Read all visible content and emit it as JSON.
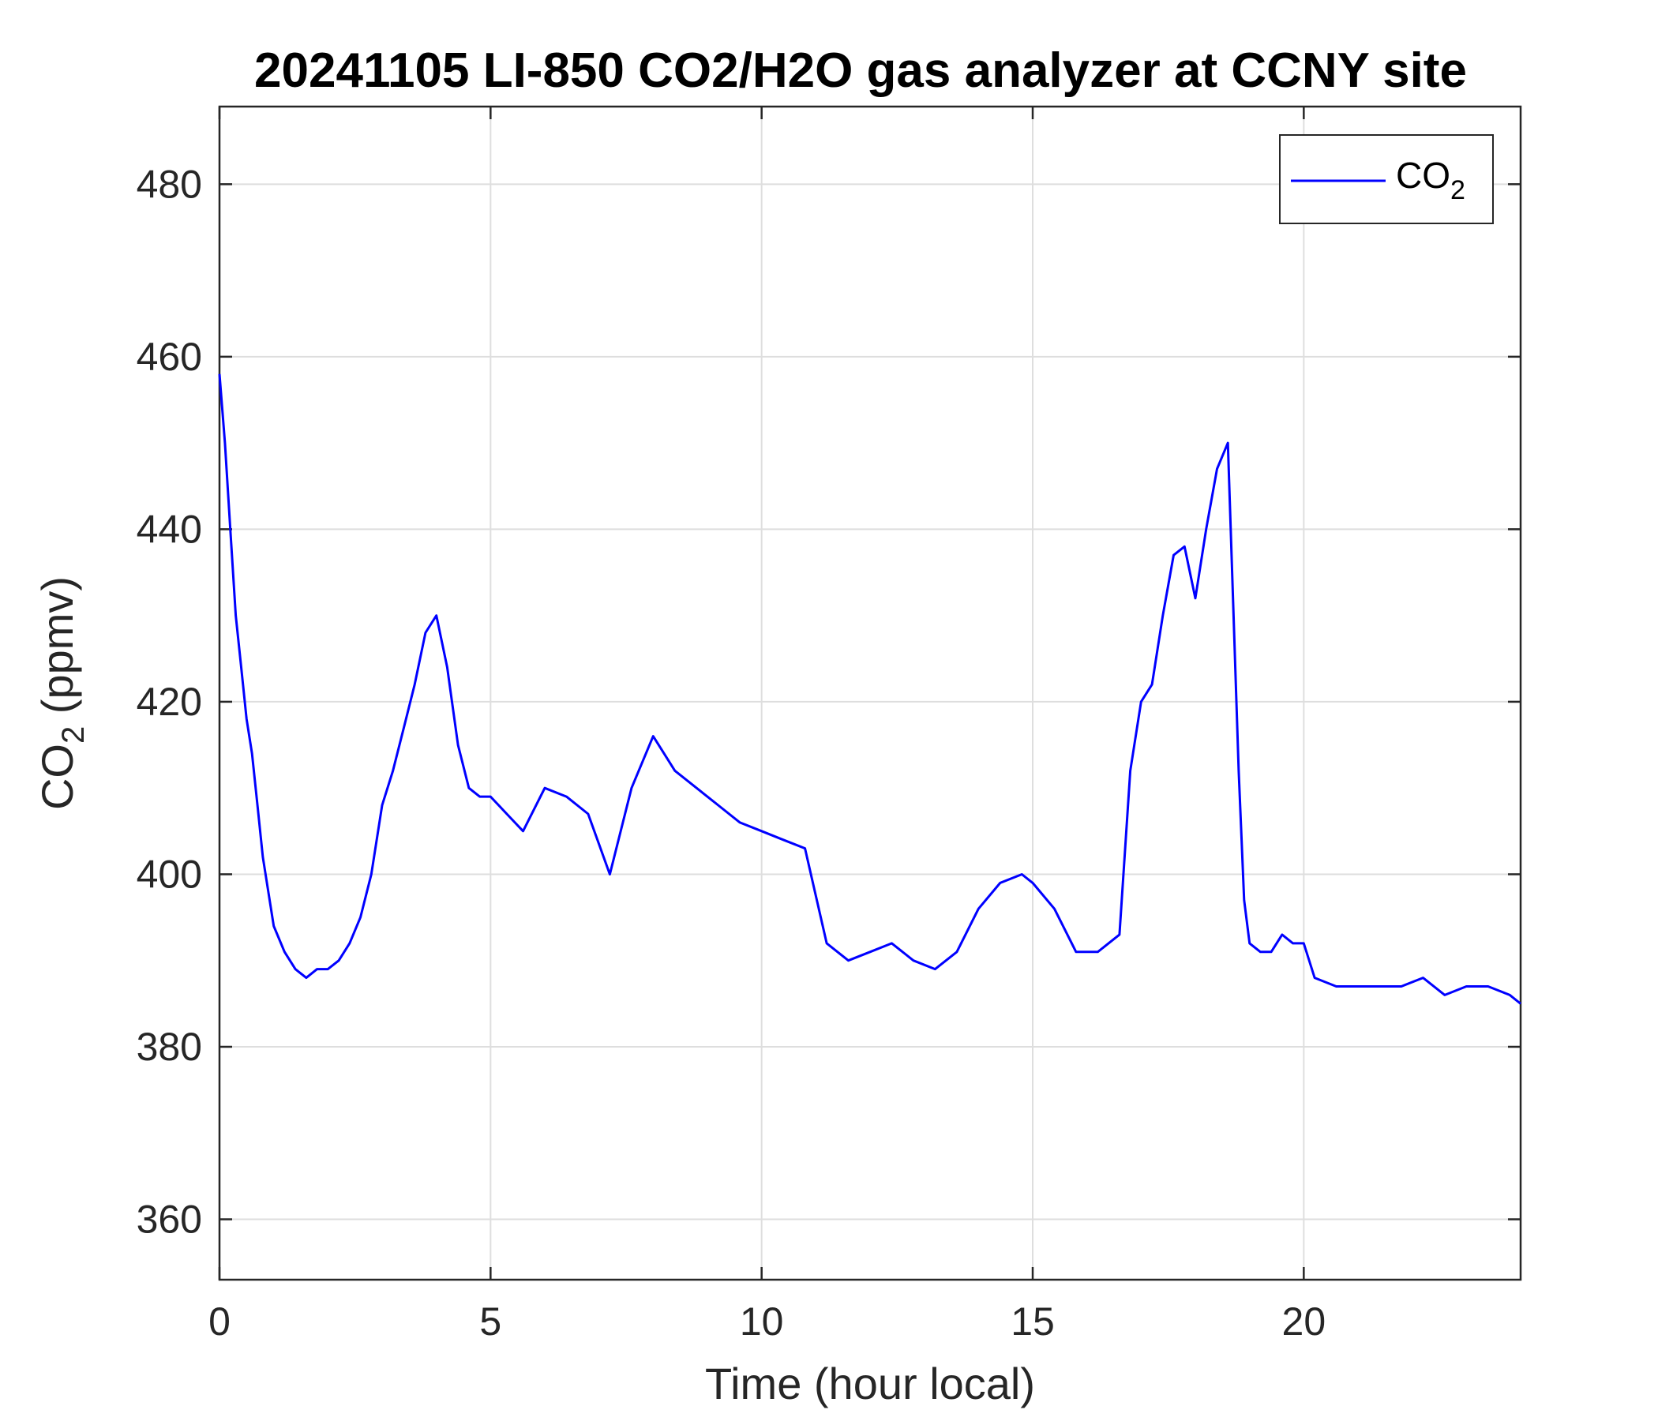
{
  "chart_data": {
    "type": "line",
    "title": "20241105 LI-850 CO2/H2O gas analyzer at CCNY site",
    "xlabel": "Time (hour local)",
    "ylabel_main": "CO",
    "ylabel_sub": "2",
    "ylabel_tail": " (ppmv)",
    "xlim": [
      0,
      24
    ],
    "ylim": [
      353,
      489
    ],
    "xticks": [
      "0",
      "5",
      "10",
      "15",
      "20"
    ],
    "yticks": [
      "360",
      "380",
      "400",
      "420",
      "440",
      "460",
      "480"
    ],
    "grid": true,
    "legend_position": "top-right",
    "series": [
      {
        "name_main": "CO",
        "name_sub": "2",
        "color": "#0000ff",
        "x": [
          0,
          0.1,
          0.2,
          0.3,
          0.4,
          0.5,
          0.6,
          0.7,
          0.8,
          0.9,
          1.0,
          1.2,
          1.4,
          1.6,
          1.8,
          2.0,
          2.2,
          2.4,
          2.6,
          2.8,
          3.0,
          3.2,
          3.4,
          3.6,
          3.8,
          4.0,
          4.2,
          4.4,
          4.6,
          4.8,
          5.0,
          5.3,
          5.6,
          6.0,
          6.4,
          6.8,
          7.2,
          7.6,
          8.0,
          8.4,
          8.8,
          9.2,
          9.6,
          10.0,
          10.4,
          10.8,
          11.2,
          11.6,
          12.0,
          12.4,
          12.8,
          13.2,
          13.6,
          14.0,
          14.4,
          14.8,
          15.0,
          15.4,
          15.8,
          16.2,
          16.6,
          16.8,
          17.0,
          17.2,
          17.4,
          17.6,
          17.8,
          18.0,
          18.2,
          18.4,
          18.6,
          18.8,
          18.9,
          19.0,
          19.2,
          19.4,
          19.6,
          19.8,
          20.0,
          20.2,
          20.6,
          21.0,
          21.4,
          21.8,
          22.2,
          22.6,
          23.0,
          23.4,
          23.8,
          24.0
        ],
        "y": [
          458,
          450,
          440,
          430,
          424,
          418,
          414,
          408,
          402,
          398,
          394,
          391,
          389,
          388,
          389,
          389,
          390,
          392,
          395,
          400,
          408,
          412,
          417,
          422,
          428,
          430,
          424,
          415,
          410,
          409,
          409,
          407,
          405,
          410,
          409,
          407,
          400,
          410,
          416,
          412,
          410,
          408,
          406,
          405,
          404,
          403,
          392,
          390,
          391,
          392,
          390,
          389,
          391,
          396,
          399,
          400,
          399,
          396,
          391,
          391,
          393,
          412,
          420,
          422,
          430,
          437,
          438,
          432,
          440,
          447,
          450,
          412,
          397,
          392,
          391,
          391,
          393,
          392,
          392,
          388,
          387,
          387,
          387,
          387,
          388,
          386,
          387,
          387,
          386,
          385
        ]
      }
    ]
  }
}
